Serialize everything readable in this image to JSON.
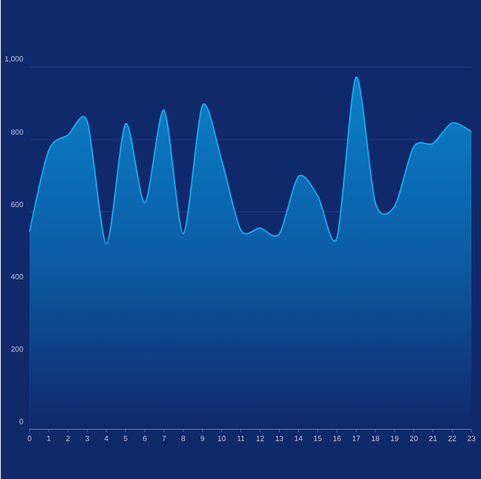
{
  "chart_data": {
    "type": "area",
    "categories": [
      "0",
      "1",
      "2",
      "3",
      "4",
      "5",
      "6",
      "7",
      "8",
      "9",
      "10",
      "11",
      "12",
      "13",
      "14",
      "15",
      "16",
      "17",
      "18",
      "19",
      "20",
      "21",
      "22",
      "23"
    ],
    "values": [
      545,
      770,
      812,
      850,
      511,
      843,
      625,
      881,
      540,
      894,
      742,
      549,
      555,
      539,
      698,
      644,
      528,
      972,
      625,
      615,
      780,
      789,
      846,
      821
    ],
    "color": "#1aa3ea",
    "ylim": [
      0,
      1000
    ],
    "yticks": [
      0,
      200,
      400,
      600,
      800,
      {
        "value": 1000,
        "label": "1,000"
      }
    ],
    "grid": "y"
  }
}
